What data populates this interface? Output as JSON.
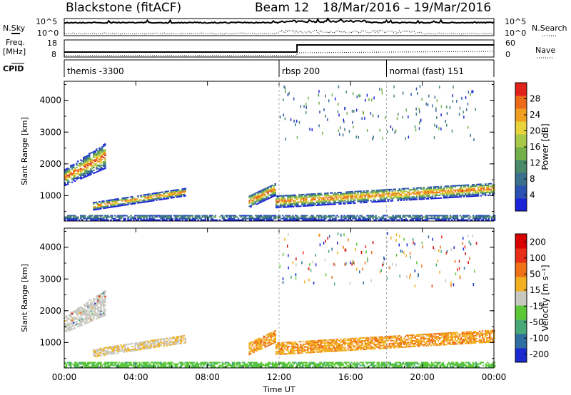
{
  "header": {
    "radar_title": "Blackstone (fitACF)",
    "beam_title": "Beam 12",
    "date_range": "18/Mar/2016 – 19/Mar/2016"
  },
  "summary": {
    "nsky_label": "N.Sky",
    "nsearch_label": "N.Search",
    "noise_ticks": [
      "10^5",
      "10^0"
    ],
    "freq_label": [
      "Freq.",
      "[MHz]"
    ],
    "freq_ticks": [
      "18",
      "8"
    ],
    "nave_label": "Nave",
    "nave_ticks": [
      "60",
      "0"
    ],
    "cpid_label": "CPID",
    "cpid_segments": [
      {
        "label": "themis -3300",
        "start_hour": 0
      },
      {
        "label": "rbsp 200",
        "start_hour": 12
      },
      {
        "label": "normal (fast) 151",
        "start_hour": 18
      }
    ]
  },
  "chart_data": [
    {
      "type": "heatmap",
      "ylabel": "Slant Range [km]",
      "y_ticks": [
        1000,
        2000,
        3000,
        4000
      ],
      "ylim": [
        200,
        4600
      ],
      "x_ticks": [
        "00:00",
        "04:00",
        "08:00",
        "12:00",
        "16:00",
        "20:00",
        "00:00"
      ],
      "xlim_hours": [
        0,
        24
      ],
      "colorbar": {
        "label": "Power [dB]",
        "tick_labels": [
          "4",
          "8",
          "12",
          "16",
          "20",
          "24",
          "28"
        ],
        "colors": [
          "#1d24d8",
          "#2b52b3",
          "#3a6f8e",
          "#4a8a6a",
          "#74b04a",
          "#a8c84a",
          "#e8d43a",
          "#f0a020",
          "#ea6a1a",
          "#e0221a"
        ]
      },
      "structures": [
        {
          "feature": "echo band",
          "from_hour": 0.0,
          "to_hour": 2.3,
          "range_km": [
            1400,
            2400
          ],
          "power_db": [
            8,
            30
          ]
        },
        {
          "feature": "echo band",
          "from_hour": 1.6,
          "to_hour": 6.8,
          "range_km": [
            500,
            1300
          ],
          "power_db": [
            8,
            22
          ]
        },
        {
          "feature": "echo band",
          "from_hour": 10.3,
          "to_hour": 11.8,
          "range_km": [
            600,
            1500
          ],
          "power_db": [
            8,
            24
          ]
        },
        {
          "feature": "echo band",
          "from_hour": 11.8,
          "to_hour": 24.0,
          "range_km": [
            1400,
            3400
          ],
          "power_db": [
            4,
            28
          ]
        },
        {
          "feature": "ground scatter",
          "from_hour": 0.0,
          "to_hour": 24.0,
          "range_km": [
            200,
            500
          ],
          "power_db": [
            4,
            12
          ]
        }
      ]
    },
    {
      "type": "heatmap",
      "ylabel": "Slant Range [km]",
      "y_ticks": [
        1000,
        2000,
        3000,
        4000
      ],
      "ylim": [
        200,
        4600
      ],
      "x_ticks": [
        "00:00",
        "04:00",
        "08:00",
        "12:00",
        "16:00",
        "20:00",
        "00:00"
      ],
      "xlim_hours": [
        0,
        24
      ],
      "xlabel": "Time UT",
      "colorbar": {
        "label": "Velocity [m s⁻¹]",
        "tick_labels": [
          "200",
          "100",
          "50",
          "15",
          "-15",
          "-50",
          "-100",
          "-200"
        ],
        "colors": [
          "#1a2ad0",
          "#2f6ea0",
          "#48a878",
          "#5cc838",
          "#c8c8c0",
          "#f0b020",
          "#f07018",
          "#e83018",
          "#d80000"
        ]
      },
      "structures": [
        {
          "feature": "echo band",
          "from_hour": 0.0,
          "to_hour": 2.3,
          "range_km": [
            1400,
            2400
          ],
          "velocity_ms": [
            -15,
            15
          ]
        },
        {
          "feature": "echo band",
          "from_hour": 1.6,
          "to_hour": 6.8,
          "range_km": [
            500,
            1300
          ],
          "velocity_ms": [
            -50,
            15
          ]
        },
        {
          "feature": "echo band",
          "from_hour": 10.3,
          "to_hour": 11.8,
          "range_km": [
            600,
            1500
          ],
          "velocity_ms": [
            -100,
            -15
          ]
        },
        {
          "feature": "echo band",
          "from_hour": 11.8,
          "to_hour": 24.0,
          "range_km": [
            1400,
            3400
          ],
          "velocity_ms": [
            -15,
            200
          ]
        },
        {
          "feature": "ground scatter",
          "from_hour": 0.0,
          "to_hour": 24.0,
          "range_km": [
            200,
            500
          ],
          "velocity_ms": [
            15,
            50
          ]
        }
      ]
    }
  ]
}
